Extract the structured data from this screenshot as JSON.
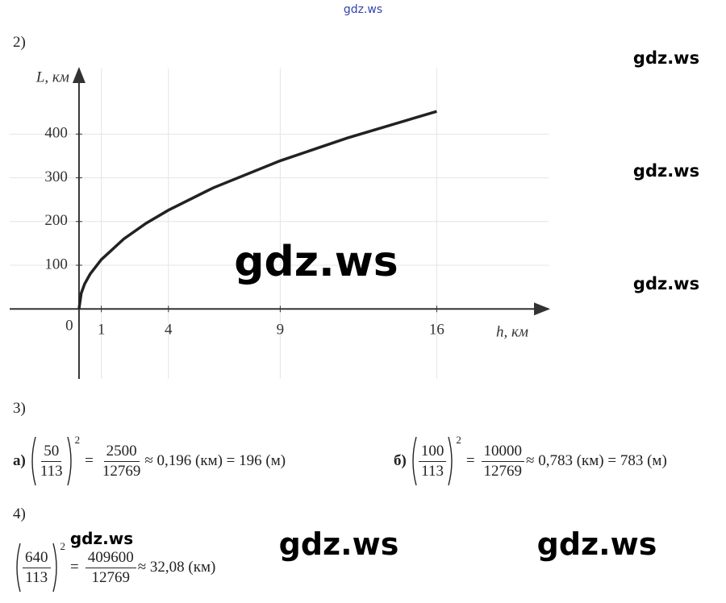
{
  "watermarks": [
    "gdz.ws",
    "gdz.ws",
    "gdz.ws",
    "gdz.ws",
    "gdz.ws",
    "gdz.ws",
    "gdz.ws",
    "gdz.ws"
  ],
  "part2": {
    "label": "2)"
  },
  "chart_data": {
    "type": "line",
    "y_label": "L, км",
    "x_label": "h, км",
    "origin_label": "0",
    "x": [
      0,
      0.1,
      0.25,
      0.5,
      1,
      2,
      3,
      4,
      6,
      9,
      12,
      16
    ],
    "values": [
      0,
      36,
      57,
      80,
      113,
      160,
      196,
      226,
      277,
      339,
      391,
      452
    ],
    "color": "#222222",
    "xlim": [
      -3.1,
      21
    ],
    "ylim": [
      -160,
      550
    ],
    "xticks": [
      1,
      4,
      9,
      16
    ],
    "yticks": [
      100,
      200,
      300,
      400
    ],
    "grid": true
  },
  "part3": {
    "label": "3)",
    "items": [
      {
        "label": "а)",
        "base": {
          "num": "50",
          "den": "113"
        },
        "power": "2",
        "eq": "=",
        "result": {
          "num": "2500",
          "den": "12769"
        },
        "tail": "≈ 0,196 (км) = 196 (м)"
      },
      {
        "label": "б)",
        "base": {
          "num": "100",
          "den": "113"
        },
        "power": "2",
        "eq": "=",
        "result": {
          "num": "10000",
          "den": "12769"
        },
        "tail": "≈ 0,783 (км) = 783 (м)"
      }
    ]
  },
  "part4": {
    "label": "4)",
    "items": [
      {
        "base": {
          "num": "640",
          "den": "113"
        },
        "power": "2",
        "eq": "=",
        "result": {
          "num": "409600",
          "den": "12769"
        },
        "tail": "≈ 32,08 (км)"
      }
    ]
  }
}
